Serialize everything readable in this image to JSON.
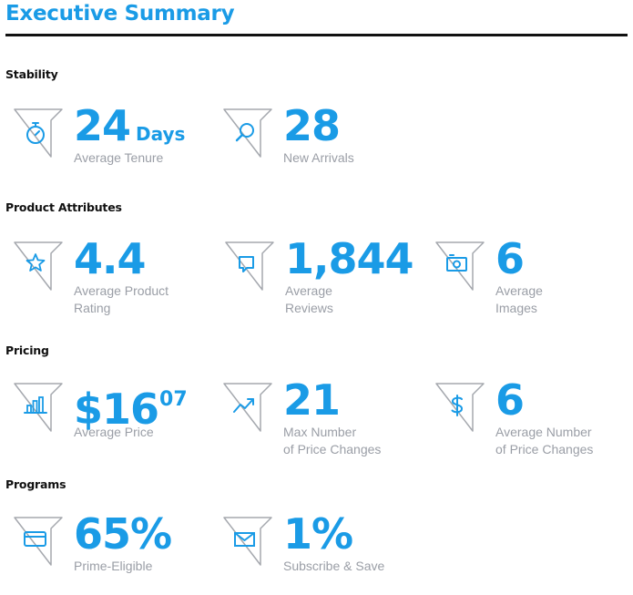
{
  "header": {
    "title": "Executive Summary"
  },
  "colors": {
    "accent": "#1a9be6",
    "text_muted": "#9a9ea6",
    "heading": "#111111",
    "rule": "#111111"
  },
  "sections": {
    "stability": {
      "heading": "Stability",
      "tenure": {
        "icon": "stopwatch-icon",
        "value": "24",
        "unit": "Days",
        "label_line1": "Average Tenure"
      },
      "arrivals": {
        "icon": "magnifier-icon",
        "value": "28",
        "label_line1": "New Arrivals"
      }
    },
    "product_attributes": {
      "heading": "Product Attributes",
      "rating": {
        "icon": "star-icon",
        "value": "4.4",
        "label_line1": "Average Product",
        "label_line2": "Rating"
      },
      "reviews": {
        "icon": "speech-bubble-icon",
        "value": "1,844",
        "label_line1": "Average",
        "label_line2": "Reviews"
      },
      "images": {
        "icon": "camera-icon",
        "value": "6",
        "label_line1": "Average",
        "label_line2": "Images"
      }
    },
    "pricing": {
      "heading": "Pricing",
      "price": {
        "icon": "bar-chart-icon",
        "value": "$16",
        "cents": "07",
        "label_line1": "Average Price"
      },
      "max_changes": {
        "icon": "trend-arrow-icon",
        "value": "21",
        "label_line1": "Max Number",
        "label_line2": "of Price Changes"
      },
      "avg_changes": {
        "icon": "dollar-icon",
        "value": "6",
        "label_line1": "Average Number",
        "label_line2": "of Price Changes"
      }
    },
    "programs": {
      "heading": "Programs",
      "prime": {
        "icon": "credit-card-icon",
        "value": "65%",
        "label_line1": "Prime-Eligible"
      },
      "subscribe": {
        "icon": "envelope-icon",
        "value": "1%",
        "label_line1": "Subscribe & Save"
      }
    }
  }
}
